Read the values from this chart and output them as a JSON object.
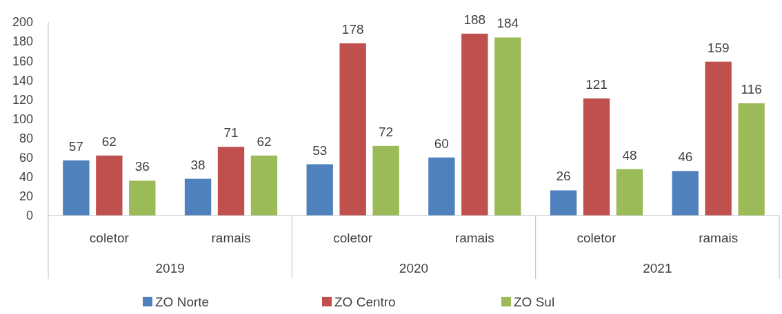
{
  "chart_data": {
    "type": "bar",
    "categories": [
      "coletor",
      "ramais",
      "coletor",
      "ramais",
      "coletor",
      "ramais"
    ],
    "series": [
      {
        "name": "ZO Norte",
        "color": "#4f81bd",
        "values": [
          57,
          38,
          53,
          60,
          26,
          46
        ]
      },
      {
        "name": "ZO Centro",
        "color": "#c0504d",
        "values": [
          62,
          71,
          178,
          188,
          121,
          159
        ]
      },
      {
        "name": "ZO Sul",
        "color": "#9bbb59",
        "values": [
          36,
          62,
          72,
          184,
          48,
          116
        ]
      }
    ],
    "annotations": [
      "2019",
      "2020",
      "2021"
    ],
    "ylim": [
      0,
      200
    ],
    "yticks": [
      0,
      20,
      40,
      60,
      80,
      100,
      120,
      140,
      160,
      180,
      200
    ],
    "data_labels": true,
    "legend": "bottom",
    "grid": false
  }
}
